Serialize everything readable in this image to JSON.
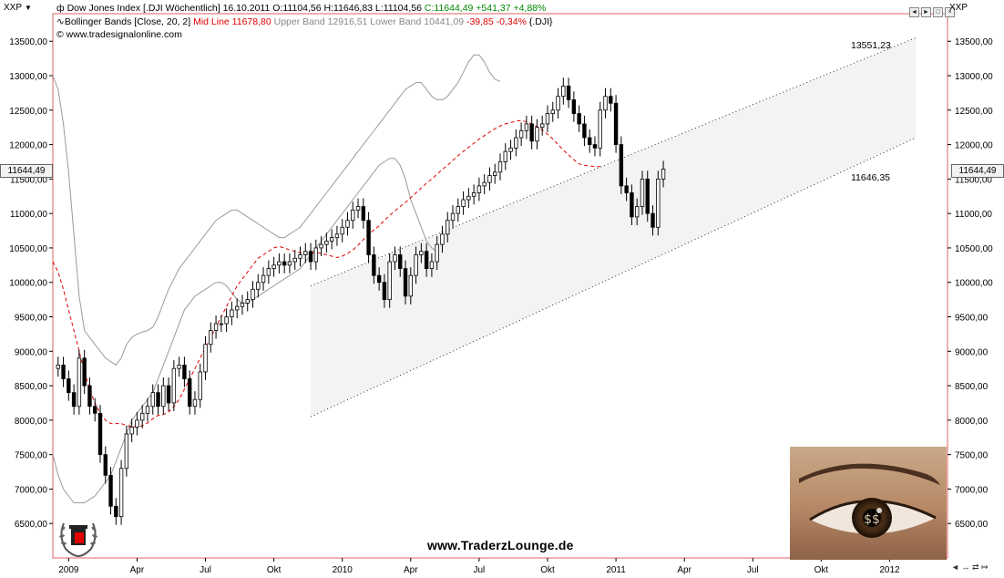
{
  "header": {
    "symbol_left": "XXP",
    "symbol_right": "XXP",
    "line1_name": "Dow Jones Index [.DJI  Wöchentlich]",
    "line1_date": "16.10.2011",
    "line1_ohlc": "O:11104,56 H:11646,83 L:11104,56",
    "line1_close": "C:11644,49 +541,37 +4,88%",
    "line2_ind": "Bollinger Bands [Close, 20, 2]",
    "line2_mid": "Mid Line 11678,80",
    "line2_bands": "Upper Band 12916,51 Lower Band 10441,09",
    "line2_chg": "-39,85 -0,34%",
    "line2_sym": "{.DJI}",
    "line3_copy": "© www.tradesignalonline.com"
  },
  "price_label_left": "11644,49",
  "price_label_right": "11644,49",
  "annotation_top": "13551,23",
  "annotation_last": "11646,35",
  "watermark": "www.TraderzLounge.de",
  "colors": {
    "background": "#ffffff",
    "channel_fill": "#f3f3f3",
    "midline": "#e00000",
    "band": "#9a9a9a",
    "frame": "#e06060",
    "candle": "#000000"
  },
  "chart_data": {
    "type": "candlestick",
    "title": "Dow Jones Index [.DJI  Wöchentlich]",
    "yticks": [
      "13500,00",
      "13000,00",
      "12500,00",
      "12000,00",
      "11500,00",
      "11000,00",
      "10500,00",
      "10000,00",
      "9500,00",
      "9000,00",
      "8500,00",
      "8000,00",
      "7500,00",
      "7000,00",
      "6500,00"
    ],
    "yvalues": [
      13500,
      13000,
      12500,
      12000,
      11500,
      11000,
      10500,
      10000,
      9500,
      9000,
      8500,
      8000,
      7500,
      7000,
      6500
    ],
    "ylim": [
      6000,
      13900
    ],
    "xticks": [
      "2009",
      "Apr",
      "Jul",
      "Okt",
      "2010",
      "Apr",
      "Jul",
      "Okt",
      "2011",
      "Apr",
      "Jul",
      "Okt",
      "2012"
    ],
    "xtick_weeks": [
      3,
      16,
      29,
      42,
      55,
      68,
      81,
      94,
      107,
      120,
      133,
      146,
      159
    ],
    "series_close": [
      8800,
      8600,
      8400,
      8200,
      8900,
      8500,
      8200,
      8100,
      7500,
      7200,
      6750,
      6600,
      7300,
      7800,
      7900,
      8000,
      8100,
      8200,
      8400,
      8200,
      8500,
      8250,
      8750,
      8800,
      8600,
      8200,
      8300,
      8700,
      9100,
      9300,
      9400,
      9400,
      9500,
      9600,
      9650,
      9700,
      9750,
      9900,
      10000,
      10100,
      10200,
      10250,
      10300,
      10250,
      10300,
      10350,
      10400,
      10450,
      10300,
      10500,
      10550,
      10600,
      10650,
      10700,
      10800,
      10900,
      11050,
      11100,
      10900,
      10400,
      10100,
      10000,
      9750,
      10300,
      10400,
      10200,
      9800,
      10100,
      10400,
      10450,
      10200,
      10300,
      10550,
      10700,
      10900,
      11000,
      11100,
      11200,
      11250,
      11300,
      11400,
      11450,
      11550,
      11600,
      11750,
      11900,
      11950,
      12100,
      12200,
      12300,
      12050,
      12250,
      12300,
      12450,
      12500,
      12700,
      12850,
      12650,
      12450,
      12300,
      12100,
      12000,
      11950,
      12500,
      12700,
      12600,
      12000,
      11400,
      11300,
      10950,
      11100,
      11500,
      11000,
      10800,
      11500,
      11644
    ],
    "series_mid": [
      10300,
      10150,
      9900,
      9600,
      9300,
      9000,
      8700,
      8450,
      8250,
      8100,
      8000,
      7950,
      7950,
      7950,
      7920,
      7910,
      7900,
      7920,
      7960,
      8020,
      8070,
      8080,
      8120,
      8200,
      8300,
      8450,
      8600,
      8750,
      8900,
      9050,
      9200,
      9350,
      9500,
      9650,
      9800,
      9950,
      10050,
      10150,
      10250,
      10350,
      10400,
      10450,
      10500,
      10520,
      10500,
      10470,
      10450,
      10430,
      10420,
      10420,
      10430,
      10420,
      10400,
      10380,
      10360,
      10380,
      10420,
      10470,
      10540,
      10620,
      10700,
      10760,
      10820,
      10900,
      10970,
      11040,
      11100,
      11160,
      11230,
      11300,
      11370,
      11440,
      11500,
      11570,
      11640,
      11700,
      11770,
      11840,
      11900,
      11960,
      12020,
      12080,
      12130,
      12180,
      12230,
      12270,
      12300,
      12320,
      12340,
      12350,
      12330,
      12300,
      12260,
      12210,
      12150,
      12080,
      12000,
      11920,
      11850,
      11780,
      11720,
      11700,
      11690,
      11680,
      11679
    ],
    "series_upper": [
      13000,
      12800,
      12300,
      11600,
      10700,
      9800,
      9300,
      9200,
      9100,
      9000,
      8900,
      8850,
      8800,
      8900,
      9100,
      9200,
      9250,
      9280,
      9300,
      9350,
      9500,
      9700,
      9900,
      10050,
      10200,
      10300,
      10400,
      10500,
      10600,
      10700,
      10800,
      10900,
      10950,
      11000,
      11050,
      11050,
      11000,
      10950,
      10900,
      10850,
      10800,
      10750,
      10700,
      10650,
      10650,
      10700,
      10750,
      10800,
      10900,
      11000,
      11100,
      11200,
      11300,
      11400,
      11500,
      11600,
      11700,
      11800,
      11900,
      12000,
      12100,
      12200,
      12300,
      12400,
      12500,
      12600,
      12700,
      12800,
      12850,
      12900,
      12900,
      12800,
      12700,
      12650,
      12650,
      12700,
      12800,
      12900,
      13050,
      13200,
      13300,
      13300,
      13200,
      13050,
      12950,
      12916
    ],
    "series_lower": [
      7500,
      7200,
      7000,
      6900,
      6800,
      6800,
      6800,
      6850,
      6900,
      7000,
      7100,
      7200,
      7400,
      7600,
      7800,
      8000,
      8100,
      8200,
      8300,
      8400,
      8600,
      8800,
      9000,
      9200,
      9400,
      9600,
      9700,
      9800,
      9850,
      9900,
      9950,
      10000,
      10000,
      9950,
      9850,
      9750,
      9700,
      9700,
      9750,
      9800,
      9850,
      9900,
      9950,
      10000,
      10050,
      10100,
      10150,
      10200,
      10300,
      10400,
      10500,
      10600,
      10700,
      10800,
      10900,
      11000,
      11100,
      11200,
      11300,
      11400,
      11500,
      11600,
      11700,
      11750,
      11800,
      11800,
      11700,
      11500,
      11200,
      11000,
      10800,
      10600,
      10500,
      10441
    ],
    "channel_upper_line": {
      "week_start": 49,
      "value_start": 9950,
      "week_end": 164,
      "value_end": 13551
    },
    "channel_lower_line": {
      "week_start": 49,
      "value_start": 8050,
      "week_end": 164,
      "value_end": 12100
    },
    "annotations": [
      "13551,23",
      "11646,35"
    ]
  }
}
